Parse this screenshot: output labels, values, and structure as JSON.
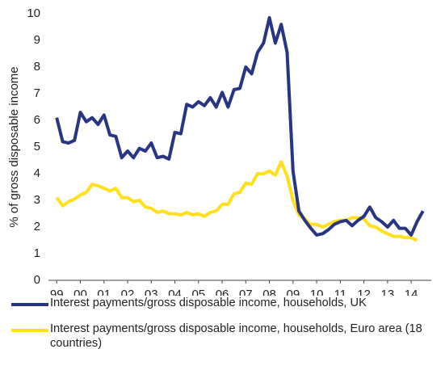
{
  "chart_data": {
    "type": "line",
    "y_label": "% of gross disposable income",
    "x": [
      1999,
      1999.25,
      1999.5,
      1999.75,
      2000,
      2000.25,
      2000.5,
      2000.75,
      2001,
      2001.25,
      2001.5,
      2001.75,
      2002,
      2002.25,
      2002.5,
      2002.75,
      2003,
      2003.25,
      2003.5,
      2003.75,
      2004,
      2004.25,
      2004.5,
      2004.75,
      2005,
      2005.25,
      2005.5,
      2005.75,
      2006,
      2006.25,
      2006.5,
      2006.75,
      2007,
      2007.25,
      2007.5,
      2007.75,
      2008,
      2008.25,
      2008.5,
      2008.75,
      2009,
      2009.25,
      2009.5,
      2009.75,
      2010,
      2010.25,
      2010.5,
      2010.75,
      2011,
      2011.25,
      2011.5,
      2011.75,
      2012,
      2012.25,
      2012.5,
      2012.75,
      2013,
      2013.25,
      2013.5,
      2013.75,
      2014,
      2014.25,
      2014.5
    ],
    "series": [
      {
        "name": "Interest payments/gross disposable income, households, UK",
        "color": "#283583",
        "values": [
          6.1,
          5.2,
          5.15,
          5.25,
          6.3,
          5.95,
          6.1,
          5.85,
          6.2,
          5.45,
          5.4,
          4.6,
          4.85,
          4.6,
          4.95,
          4.85,
          5.15,
          4.6,
          4.65,
          4.55,
          5.55,
          5.5,
          6.6,
          6.5,
          6.7,
          6.55,
          6.85,
          6.5,
          7.05,
          6.5,
          7.15,
          7.2,
          8.0,
          7.75,
          8.55,
          8.9,
          9.85,
          8.9,
          9.6,
          8.55,
          4.1,
          2.6,
          2.25,
          1.95,
          1.7,
          1.75,
          1.9,
          2.1,
          2.2,
          2.25,
          2.05,
          2.25,
          2.4,
          2.75,
          2.35,
          2.2,
          2.0,
          2.25,
          1.95,
          1.95,
          1.7,
          2.2,
          2.6
        ]
      },
      {
        "name": "Interest payments/gross disposable income, households, Euro area (18 countries)",
        "color": "#ffe01a",
        "values": [
          3.1,
          2.8,
          2.95,
          3.05,
          3.2,
          3.3,
          3.6,
          3.55,
          3.45,
          3.35,
          3.45,
          3.1,
          3.1,
          2.95,
          3.0,
          2.75,
          2.7,
          2.55,
          2.6,
          2.5,
          2.5,
          2.45,
          2.55,
          2.45,
          2.5,
          2.4,
          2.55,
          2.6,
          2.85,
          2.85,
          3.25,
          3.3,
          3.65,
          3.6,
          4.0,
          4.0,
          4.1,
          3.95,
          4.45,
          3.9,
          3.0,
          2.45,
          2.3,
          2.1,
          2.1,
          2.0,
          2.1,
          2.2,
          2.25,
          2.25,
          2.35,
          2.35,
          2.3,
          2.05,
          2.0,
          1.85,
          1.75,
          1.65,
          1.65,
          1.6,
          1.6,
          1.5,
          null
        ]
      }
    ],
    "xlim": [
      1998.65,
      2014.85
    ],
    "xticks": [
      {
        "value": 1999,
        "label": "99"
      },
      {
        "value": 2000,
        "label": "00"
      },
      {
        "value": 2001,
        "label": "01"
      },
      {
        "value": 2002,
        "label": "02"
      },
      {
        "value": 2003,
        "label": "03"
      },
      {
        "value": 2004,
        "label": "04"
      },
      {
        "value": 2005,
        "label": "05"
      },
      {
        "value": 2006,
        "label": "06"
      },
      {
        "value": 2007,
        "label": "07"
      },
      {
        "value": 2008,
        "label": "08"
      },
      {
        "value": 2009,
        "label": "09"
      },
      {
        "value": 2010,
        "label": "10"
      },
      {
        "value": 2011,
        "label": "11"
      },
      {
        "value": 2012,
        "label": "12"
      },
      {
        "value": 2013,
        "label": "13"
      },
      {
        "value": 2014,
        "label": "14"
      }
    ],
    "ylim": [
      0,
      10
    ],
    "yticks": [
      0,
      1,
      2,
      3,
      4,
      5,
      6,
      7,
      8,
      9,
      10
    ],
    "grid": false
  }
}
